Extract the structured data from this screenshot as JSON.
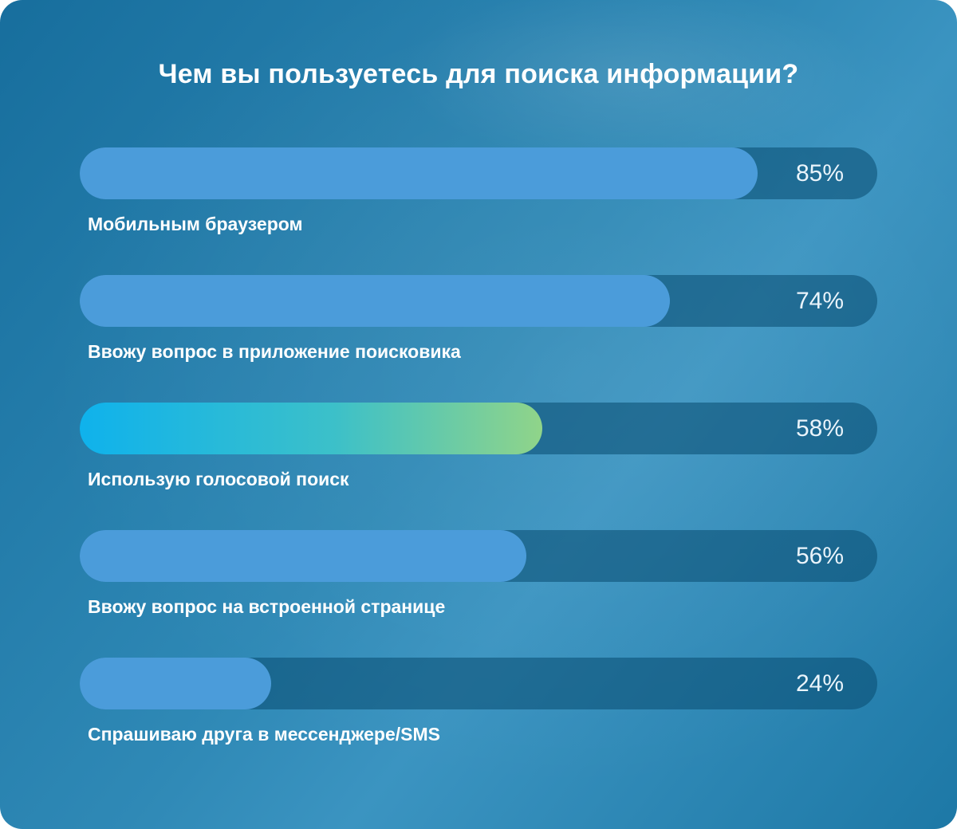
{
  "title": "Чем вы пользуетесь для поиска информации?",
  "chart_data": {
    "type": "bar",
    "orientation": "horizontal",
    "title": "Чем вы пользуетесь для поиска информации?",
    "categories": [
      "Мобильным браузером",
      "Ввожу вопрос в приложение поисковика",
      "Использую голосовой поиск",
      "Ввожу вопрос на встроенной странице",
      "Спрашиваю друга в мессенджере/SMS"
    ],
    "values": [
      85,
      74,
      58,
      56,
      24
    ],
    "value_labels": [
      "85%",
      "74%",
      "58%",
      "56%",
      "24%"
    ],
    "xlim": [
      0,
      100
    ],
    "grid": false,
    "legend": false,
    "highlight_index": 2,
    "colors": {
      "bar_fill": "#4b9cda",
      "bar_track": "#0d5e8c",
      "highlight_gradient_start": "#0fb2ec",
      "highlight_gradient_end": "#90d489",
      "background_start": "#176e9d",
      "background_end": "#3b94c1",
      "text": "#ffffff"
    }
  }
}
